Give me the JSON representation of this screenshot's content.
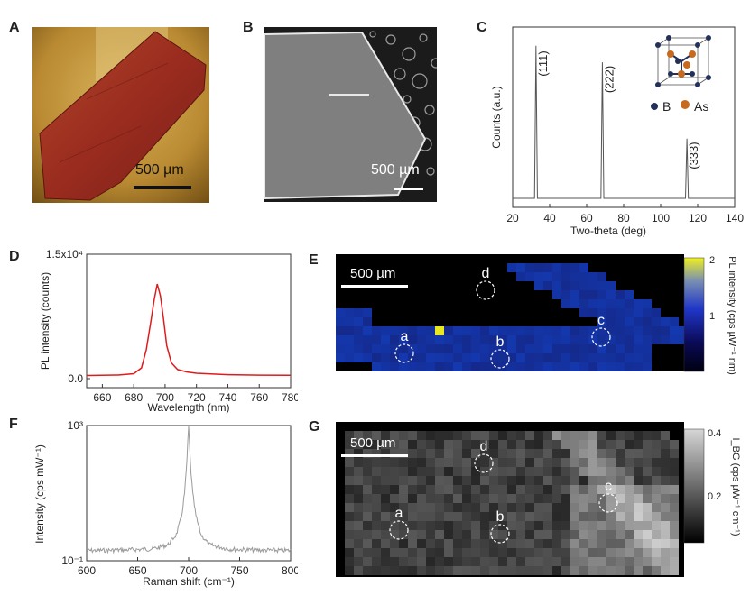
{
  "panel_labels": {
    "A": "A",
    "B": "B",
    "C": "C",
    "D": "D",
    "E": "E",
    "F": "F",
    "G": "G"
  },
  "panelA": {
    "scale_label": "500 µm"
  },
  "panelB": {
    "scale_label": "500 µm"
  },
  "chart_data": [
    {
      "id": "C",
      "type": "line",
      "xlabel": "Two-theta (deg)",
      "ylabel": "Counts (a.u.)",
      "xlim": [
        20,
        140
      ],
      "xticks": [
        "20",
        "40",
        "60",
        "80",
        "100",
        "120",
        "140"
      ],
      "peaks": [
        {
          "x": 32.6,
          "height": 0.92,
          "label": "(111)"
        },
        {
          "x": 68.5,
          "height": 0.82,
          "label": "(222)"
        },
        {
          "x": 114.2,
          "height": 0.36,
          "label": "(333)"
        }
      ],
      "inset_legend": {
        "B": "B",
        "As": "As"
      },
      "colors": {
        "B": "#22305a",
        "As": "#c86a1e"
      }
    },
    {
      "id": "D",
      "type": "line",
      "xlabel": "Wavelength (nm)",
      "ylabel": "PL intensity (counts)",
      "xlim": [
        650,
        780
      ],
      "ylim": [
        0,
        15000
      ],
      "xticks": [
        "660",
        "680",
        "700",
        "720",
        "740",
        "760",
        "780"
      ],
      "yticks": [
        "0.0",
        "1.5x10⁴"
      ],
      "x": [
        650,
        670,
        680,
        685,
        688,
        691,
        693,
        695,
        697,
        699,
        701,
        704,
        708,
        714,
        720,
        740,
        760,
        780
      ],
      "y": [
        380,
        430,
        600,
        1300,
        3500,
        7000,
        9500,
        11400,
        10000,
        7200,
        4000,
        1900,
        1100,
        800,
        650,
        480,
        420,
        400
      ],
      "color": "#e01b1b"
    },
    {
      "id": "F",
      "type": "line",
      "xlabel": "Raman shift (cm⁻¹)",
      "ylabel": "Intensity (cps mW⁻¹)",
      "xlim": [
        600,
        800
      ],
      "ylim": [
        0.1,
        1000
      ],
      "yscale": "log",
      "xticks": [
        "600",
        "650",
        "700",
        "750",
        "800"
      ],
      "yticks": [
        "10⁻¹",
        "10³"
      ],
      "x": [
        600,
        640,
        660,
        670,
        680,
        688,
        693,
        696,
        698,
        699.5,
        700,
        700.5,
        702,
        704,
        707,
        712,
        720,
        740,
        760,
        800
      ],
      "y": [
        0.2,
        0.21,
        0.22,
        0.24,
        0.3,
        0.6,
        2,
        10,
        60,
        500,
        900,
        450,
        55,
        10,
        2.2,
        0.6,
        0.3,
        0.22,
        0.21,
        0.2
      ],
      "color": "#9a9a9a"
    }
  ],
  "mapE": {
    "scale_label": "500 µm",
    "colorbar_label": "PL intensity (cps µW⁻¹ nm)",
    "colorbar_ticks": [
      "2",
      "1"
    ],
    "markers": [
      "a",
      "b",
      "c",
      "d"
    ]
  },
  "mapG": {
    "scale_label": "500 µm",
    "colorbar_label": "I_BG (cps µW⁻¹ cm⁻¹)",
    "colorbar_ticks": [
      "0.4",
      "0.2"
    ],
    "markers": [
      "a",
      "b",
      "c",
      "d"
    ]
  }
}
